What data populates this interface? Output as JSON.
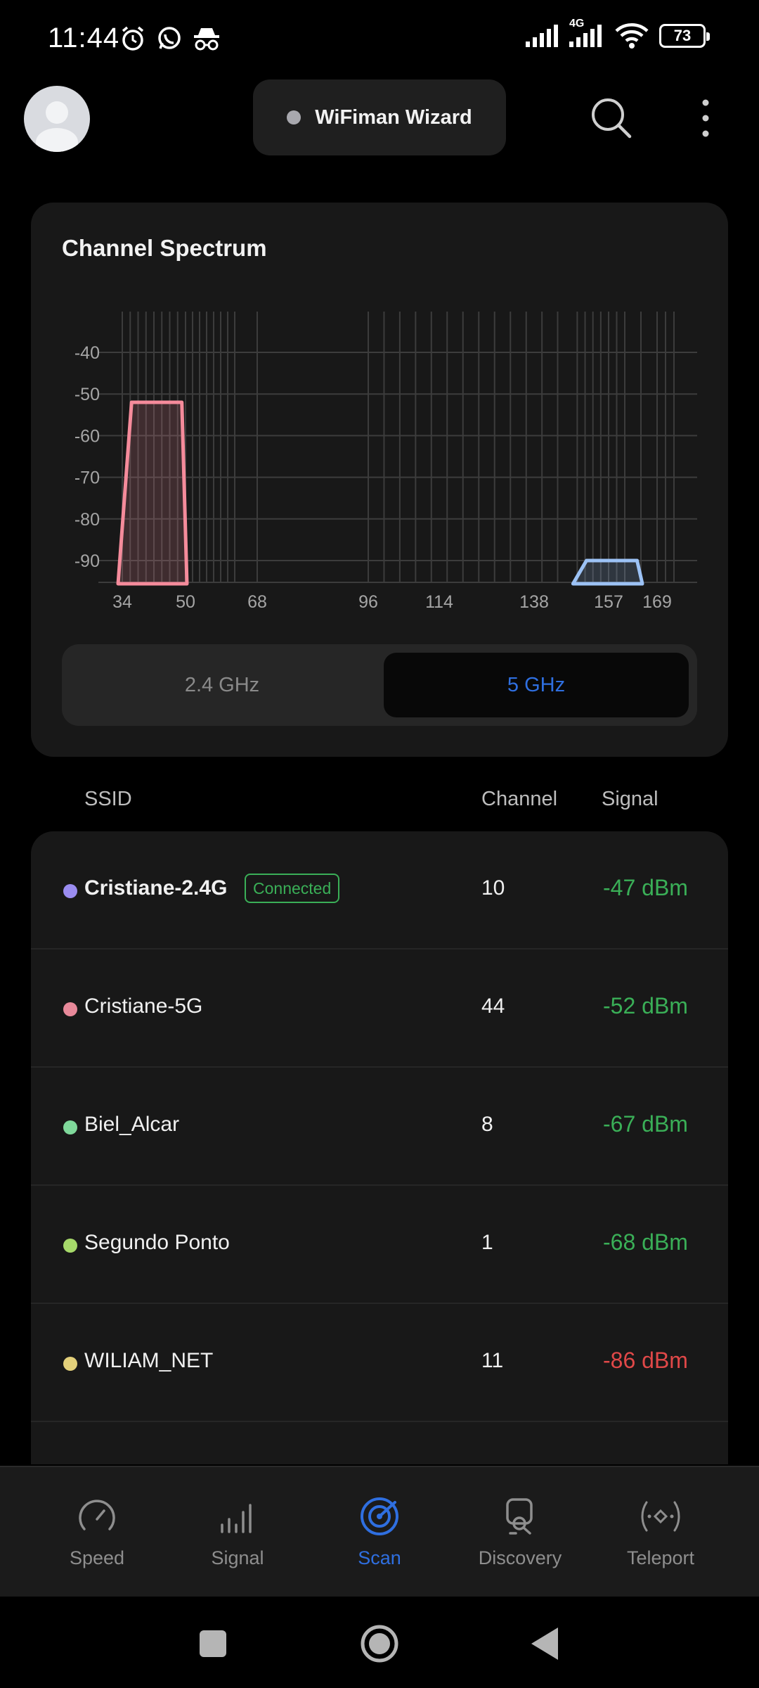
{
  "status_bar": {
    "time": "11:44",
    "network_type": "4G",
    "battery": "73"
  },
  "header": {
    "wizard_label": "WiFiman Wizard"
  },
  "spectrum": {
    "title": "Channel Spectrum",
    "band_options": [
      "2.4 GHz",
      "5 GHz"
    ],
    "selected_band": "5 GHz"
  },
  "chart_data": {
    "type": "area",
    "title": "Channel Spectrum",
    "y_ticks": [
      "-40",
      "-50",
      "-60",
      "-70",
      "-80",
      "-90"
    ],
    "ylim": [
      -95,
      -30
    ],
    "x_ticks": [
      "34",
      "50",
      "68",
      "96",
      "114",
      "138",
      "157",
      "169"
    ],
    "xlim": [
      34,
      177
    ],
    "grid": true,
    "channel_gridlines": [
      34,
      36,
      38,
      40,
      42,
      44,
      46,
      48,
      50,
      52,
      54,
      56,
      58,
      60,
      62,
      64,
      68,
      96,
      100,
      104,
      108,
      112,
      116,
      120,
      124,
      128,
      132,
      136,
      140,
      144,
      149,
      151,
      153,
      155,
      157,
      159,
      161,
      165,
      169,
      173,
      177
    ],
    "series": [
      {
        "center_channel": 44,
        "span": [
          34,
          50
        ],
        "top_span": [
          36,
          48
        ],
        "signal_dbm": -52,
        "color": "#f58b9b"
      },
      {
        "center_channel": 157,
        "span": [
          149,
          165
        ],
        "top_span": [
          151,
          163
        ],
        "signal_dbm": -90,
        "color": "#9cc2f5"
      }
    ]
  },
  "table": {
    "headers": {
      "ssid": "SSID",
      "channel": "Channel",
      "signal": "Signal"
    },
    "rows": [
      {
        "ssid": "Cristiane-2.4G",
        "badge": "Connected",
        "channel": "10",
        "signal": "-47 dBm",
        "dot_color": "#9a8cf0",
        "signal_color": "#3aaf57",
        "bold": true
      },
      {
        "ssid": "Cristiane-5G",
        "badge": "",
        "channel": "44",
        "signal": "-52 dBm",
        "dot_color": "#e8899a",
        "signal_color": "#3aaf57",
        "bold": false
      },
      {
        "ssid": "Biel_Alcar",
        "badge": "",
        "channel": "8",
        "signal": "-67 dBm",
        "dot_color": "#7fd89a",
        "signal_color": "#3aaf57",
        "bold": false
      },
      {
        "ssid": "Segundo Ponto",
        "badge": "",
        "channel": "1",
        "signal": "-68 dBm",
        "dot_color": "#a6d96a",
        "signal_color": "#3aaf57",
        "bold": false
      },
      {
        "ssid": "WILIAM_NET",
        "badge": "",
        "channel": "11",
        "signal": "-86 dBm",
        "dot_color": "#e3d07a",
        "signal_color": "#e04848",
        "bold": false
      }
    ]
  },
  "bottom_nav": [
    {
      "label": "Speed",
      "icon": "speedometer-icon",
      "active": false
    },
    {
      "label": "Signal",
      "icon": "signal-bars-icon",
      "active": false
    },
    {
      "label": "Scan",
      "icon": "radar-icon",
      "active": true
    },
    {
      "label": "Discovery",
      "icon": "device-search-icon",
      "active": false
    },
    {
      "label": "Teleport",
      "icon": "teleport-icon",
      "active": false
    }
  ],
  "colors": {
    "accent": "#2f6fe0",
    "good_signal": "#3aaf57",
    "bad_signal": "#e04848"
  }
}
